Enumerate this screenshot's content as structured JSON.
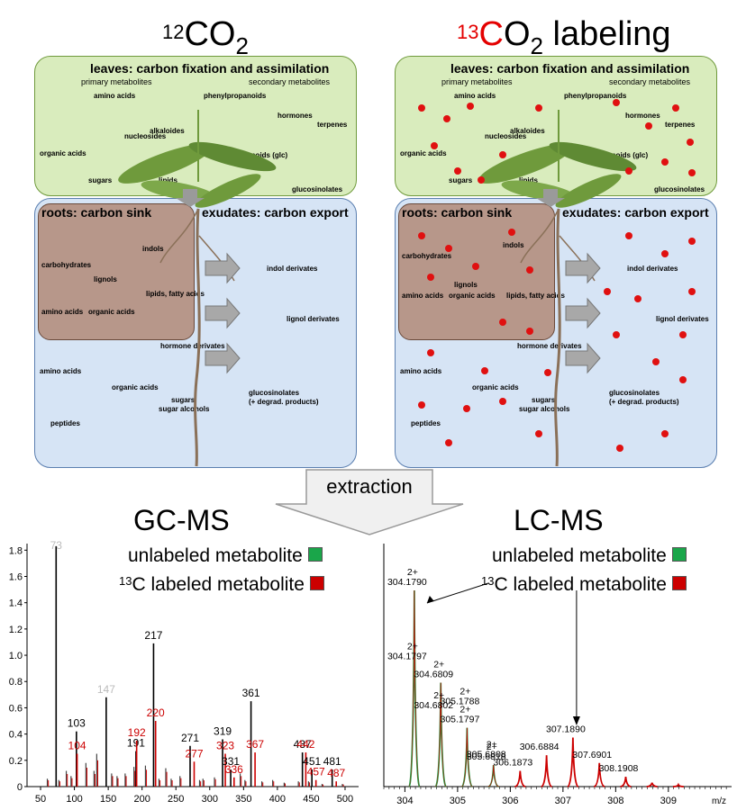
{
  "top": {
    "left_title": {
      "sup": "12",
      "main": "CO",
      "sub": "2"
    },
    "right_title": {
      "sup": "13",
      "c": "C",
      "o": "O",
      "sub": "2",
      "rest": " labeling"
    }
  },
  "panel": {
    "leaves_header": "leaves: carbon fixation and assimilation",
    "primary": "primary metabolites",
    "secondary": "secondary metabolites",
    "roots_header": "roots: carbon sink",
    "exudates_header": "exudates: carbon export",
    "leaf_labels": [
      "amino acids",
      "alkaloides",
      "phenylpropanoids",
      "hormones",
      "terpenes",
      "nucleosides",
      "organic acids",
      "flavonoids (glc)",
      "sugars",
      "lipids",
      "glucosinolates"
    ],
    "root_labels": [
      "carbohydrates",
      "indols",
      "lignols",
      "lipids, fatty acids",
      "amino acids",
      "organic acids"
    ],
    "exudate_labels": [
      "indol derivates",
      "lignol derivates",
      "hormone derivates",
      "amino acids",
      "organic acids",
      "sugars",
      "sugar alcohols",
      "peptides",
      "glucosinolates",
      "(+ degrad. products)"
    ]
  },
  "extraction": "extraction",
  "gcms": {
    "title": "GC-MS",
    "legend_unlabeled": "unlabeled metabolite",
    "legend_labeled_sup": "13",
    "legend_labeled": "C labeled metabolite",
    "colors": {
      "unlabeled": "#1aa64a",
      "labeled": "#cc0000"
    }
  },
  "lcms": {
    "title": "LC-MS",
    "legend_unlabeled": "unlabeled metabolite",
    "legend_labeled_sup": "13",
    "legend_labeled": "C labeled metabolite",
    "colors": {
      "unlabeled": "#1aa64a",
      "labeled": "#cc0000"
    }
  },
  "chart_data": [
    {
      "type": "bar",
      "xlim": [
        30,
        520
      ],
      "ylim": [
        0,
        1.85
      ],
      "xticks": [
        50,
        100,
        150,
        200,
        250,
        300,
        350,
        400,
        450,
        500
      ],
      "yticks": [
        "0",
        "0.2",
        "0.4",
        "0.6",
        "0.8",
        "1.0",
        "1.2",
        "1.4",
        "1.6",
        "1.8"
      ],
      "peaks": [
        {
          "x": 73,
          "y": 1.83,
          "label": "73",
          "color": "#bbbbbb"
        },
        {
          "x": 103,
          "y": 0.42,
          "label": "103",
          "color": "#000000"
        },
        {
          "x": 104,
          "y": 0.25,
          "label": "104",
          "color": "#cc0000"
        },
        {
          "x": 147,
          "y": 0.68,
          "label": "147",
          "color": "#bbbbbb"
        },
        {
          "x": 191,
          "y": 0.27,
          "label": "191",
          "color": "#000000"
        },
        {
          "x": 192,
          "y": 0.35,
          "label": "192",
          "color": "#cc0000"
        },
        {
          "x": 217,
          "y": 1.09,
          "label": "217",
          "color": "#000000"
        },
        {
          "x": 220,
          "y": 0.5,
          "label": "220",
          "color": "#cc0000"
        },
        {
          "x": 271,
          "y": 0.31,
          "label": "271",
          "color": "#000000"
        },
        {
          "x": 277,
          "y": 0.19,
          "label": "277",
          "color": "#cc0000"
        },
        {
          "x": 319,
          "y": 0.36,
          "label": "319",
          "color": "#000000"
        },
        {
          "x": 323,
          "y": 0.25,
          "label": "323",
          "color": "#cc0000"
        },
        {
          "x": 331,
          "y": 0.13,
          "label": "331",
          "color": "#000000"
        },
        {
          "x": 336,
          "y": 0.07,
          "label": "336",
          "color": "#cc0000"
        },
        {
          "x": 361,
          "y": 0.65,
          "label": "361",
          "color": "#000000"
        },
        {
          "x": 367,
          "y": 0.26,
          "label": "367",
          "color": "#cc0000"
        },
        {
          "x": 437,
          "y": 0.26,
          "label": "437",
          "color": "#000000"
        },
        {
          "x": 442,
          "y": 0.26,
          "label": "442",
          "color": "#cc0000"
        },
        {
          "x": 451,
          "y": 0.13,
          "label": "451",
          "color": "#000000"
        },
        {
          "x": 457,
          "y": 0.05,
          "label": "457",
          "color": "#cc0000"
        },
        {
          "x": 481,
          "y": 0.13,
          "label": "481",
          "color": "#000000"
        },
        {
          "x": 487,
          "y": 0.04,
          "label": "487",
          "color": "#cc0000"
        }
      ]
    },
    {
      "type": "line",
      "xlim": [
        303.6,
        310.2
      ],
      "xticks": [
        "304",
        "305",
        "306",
        "307",
        "308",
        "309"
      ],
      "x_unit": "m/z",
      "peaks": [
        {
          "x": 304.179,
          "y": 1.0,
          "label": "304.1790",
          "charge": "2+",
          "color": "#1aa64a"
        },
        {
          "x": 304.6809,
          "y": 0.53,
          "label": "304.6809",
          "charge": "2+",
          "color": "#1aa64a"
        },
        {
          "x": 305.1797,
          "y": 0.3,
          "label": "305.1797",
          "charge": "2+",
          "color": "#1aa64a"
        },
        {
          "x": 305.6818,
          "y": 0.11,
          "label": "305.6818",
          "charge": "2+",
          "color": "#1aa64a"
        },
        {
          "x": 306.1873,
          "y": 0.08,
          "label": "306.1873",
          "color": "#cc0000"
        },
        {
          "x": 306.6884,
          "y": 0.16,
          "label": "306.6884",
          "color": "#cc0000"
        },
        {
          "x": 307.189,
          "y": 0.25,
          "label": "307.1890",
          "color": "#cc0000"
        },
        {
          "x": 307.6901,
          "y": 0.12,
          "label": "307.6901",
          "color": "#cc0000"
        },
        {
          "x": 308.1908,
          "y": 0.05,
          "label": "308.1908",
          "color": "#cc0000"
        },
        {
          "x": 308.69,
          "y": 0.02,
          "color": "#cc0000"
        },
        {
          "x": 309.19,
          "y": 0.01,
          "color": "#cc0000"
        }
      ],
      "overlay_labels": [
        {
          "x": 304.179,
          "y": 0.65,
          "label": "304.1797",
          "charge": "2+"
        },
        {
          "x": 304.6809,
          "y": 0.4,
          "label": "304.6802",
          "charge": "2+"
        },
        {
          "x": 305.1797,
          "y": 0.42,
          "label": "305.1788",
          "charge": "2+"
        },
        {
          "x": 305.6818,
          "y": 0.15,
          "label": "305.6808",
          "charge": "2+"
        }
      ]
    }
  ]
}
